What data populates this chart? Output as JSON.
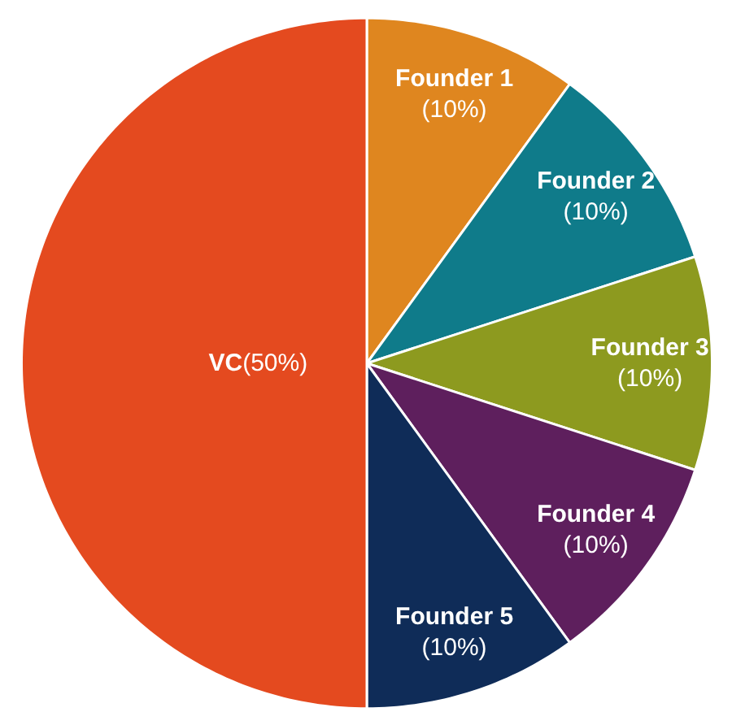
{
  "chart_data": {
    "type": "pie",
    "categories": [
      "Founder 1",
      "Founder 2",
      "Founder 3",
      "Founder 4",
      "Founder 5",
      "VC"
    ],
    "values": [
      10,
      10,
      10,
      10,
      10,
      50
    ],
    "value_labels": [
      "(10%)",
      "(10%)",
      "(10%)",
      "(10%)",
      "(10%)",
      "(50%)"
    ],
    "colors": [
      "#df861f",
      "#0f7b8a",
      "#8d9a1f",
      "#5e1f5d",
      "#0f2c58",
      "#e44a1f"
    ]
  }
}
